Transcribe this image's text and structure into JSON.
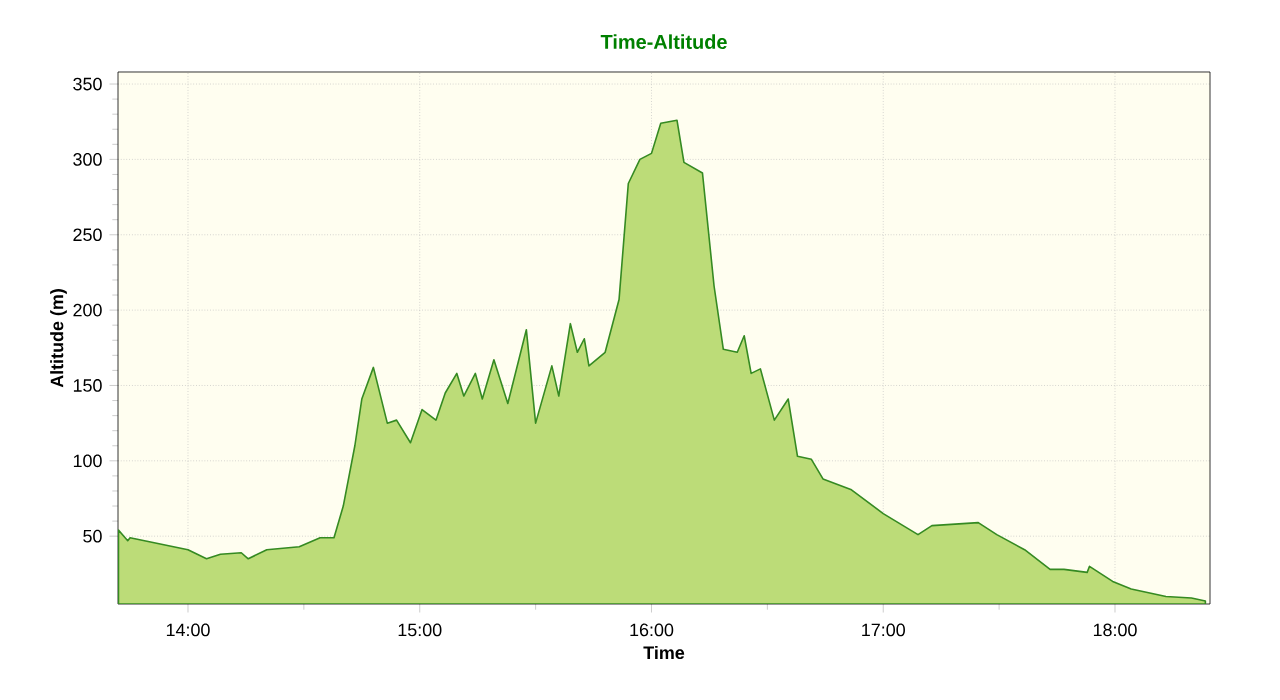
{
  "chart_data": {
    "type": "area",
    "title": "Time-Altitude",
    "xlabel": "Time",
    "ylabel": "Altitude (m)",
    "xlim": [
      13.698,
      18.41
    ],
    "ylim": [
      5,
      358
    ],
    "xticks": [
      {
        "value": 14,
        "label": "14:00"
      },
      {
        "value": 15,
        "label": "15:00"
      },
      {
        "value": 16,
        "label": "16:00"
      },
      {
        "value": 17,
        "label": "17:00"
      },
      {
        "value": 18,
        "label": "18:00"
      }
    ],
    "yticks": [
      50,
      100,
      150,
      200,
      250,
      300,
      350
    ],
    "grid": true,
    "marker": "none",
    "line_style": "solid",
    "series": [
      {
        "color": "#bcdc78",
        "x": [
          13.7,
          13.74,
          13.75,
          14.0,
          14.08,
          14.14,
          14.23,
          14.26,
          14.34,
          14.48,
          14.57,
          14.63,
          14.67,
          14.72,
          14.75,
          14.8,
          14.86,
          14.9,
          14.96,
          15.01,
          15.07,
          15.11,
          15.16,
          15.19,
          15.24,
          15.27,
          15.32,
          15.38,
          15.46,
          15.5,
          15.57,
          15.6,
          15.65,
          15.68,
          15.71,
          15.73,
          15.8,
          15.86,
          15.9,
          15.95,
          16.0,
          16.04,
          16.11,
          16.14,
          16.22,
          16.27,
          16.31,
          16.37,
          16.4,
          16.43,
          16.47,
          16.53,
          16.59,
          16.63,
          16.69,
          16.74,
          16.86,
          17.0,
          17.15,
          17.21,
          17.41,
          17.49,
          17.61,
          17.72,
          17.78,
          17.88,
          17.89,
          17.99,
          18.07,
          18.22,
          18.33,
          18.39
        ],
        "values": [
          54,
          47,
          49,
          41,
          35,
          38,
          39,
          35,
          41,
          43,
          49,
          49,
          70,
          110,
          141,
          162,
          125,
          127,
          112,
          134,
          127,
          145,
          158,
          143,
          158,
          141,
          167,
          138,
          187,
          125,
          163,
          143,
          191,
          172,
          181,
          163,
          172,
          207,
          284,
          300,
          304,
          324,
          326,
          298,
          291,
          216,
          174,
          172,
          183,
          158,
          161,
          127,
          141,
          103,
          101,
          88,
          81,
          65,
          51,
          57,
          59,
          51,
          41,
          28,
          28,
          26,
          30,
          20,
          15,
          10,
          9,
          7
        ]
      }
    ]
  }
}
